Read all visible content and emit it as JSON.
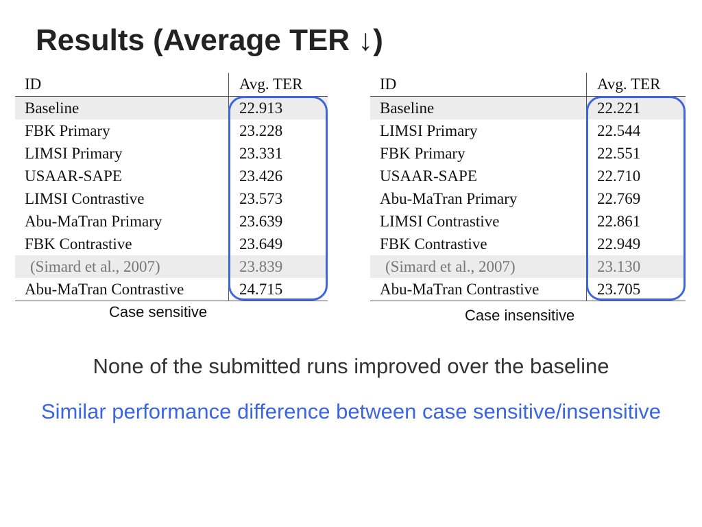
{
  "title": "Results (Average TER ↓)",
  "tables": [
    {
      "headers": [
        "ID",
        "Avg. TER"
      ],
      "rows": [
        [
          "Baseline",
          "22.913"
        ],
        [
          "FBK Primary",
          "23.228"
        ],
        [
          "LIMSI Primary",
          "23.331"
        ],
        [
          "USAAR-SAPE",
          "23.426"
        ],
        [
          "LIMSI Contrastive",
          "23.573"
        ],
        [
          "Abu-MaTran Primary",
          "23.639"
        ],
        [
          "FBK Contrastive",
          "23.649"
        ],
        [
          "(Simard et al., 2007)",
          "23.839"
        ],
        [
          "Abu-MaTran Contrastive",
          "24.715"
        ]
      ],
      "caption": "Case sensitive"
    },
    {
      "headers": [
        "ID",
        "Avg. TER"
      ],
      "rows": [
        [
          "Baseline",
          "22.221"
        ],
        [
          "LIMSI Primary",
          "22.544"
        ],
        [
          "FBK Primary",
          "22.551"
        ],
        [
          "USAAR-SAPE",
          "22.710"
        ],
        [
          "Abu-MaTran Primary",
          "22.769"
        ],
        [
          "LIMSI Contrastive",
          "22.861"
        ],
        [
          "FBK Contrastive",
          "22.949"
        ],
        [
          "(Simard et al., 2007)",
          "23.130"
        ],
        [
          "Abu-MaTran Contrastive",
          "23.705"
        ]
      ],
      "caption": "Case insensitive"
    }
  ],
  "notes": [
    "None of the submitted runs improved over the baseline",
    "Similar performance difference between case sensitive/insensitive"
  ]
}
